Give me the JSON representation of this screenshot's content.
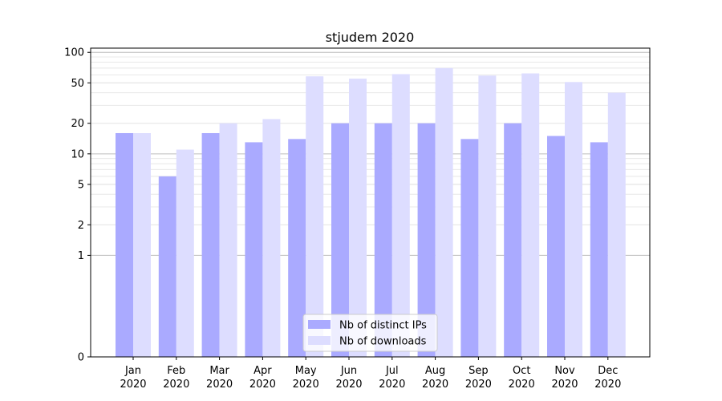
{
  "chart_data": {
    "type": "bar",
    "title": "stjudem 2020",
    "xlabel": "",
    "ylabel": "",
    "categories": [
      "Jan\n2020",
      "Feb\n2020",
      "Mar\n2020",
      "Apr\n2020",
      "May\n2020",
      "Jun\n2020",
      "Jul\n2020",
      "Aug\n2020",
      "Sep\n2020",
      "Oct\n2020",
      "Nov\n2020",
      "Dec\n2020"
    ],
    "series": [
      {
        "name": "Nb of distinct IPs",
        "color": "#aaaaff",
        "values": [
          16,
          6,
          16,
          13,
          14,
          20,
          20,
          20,
          14,
          20,
          15,
          13
        ]
      },
      {
        "name": "Nb of downloads",
        "color": "#ddddff",
        "values": [
          16,
          11,
          20,
          22,
          58,
          55,
          61,
          70,
          59,
          62,
          51,
          40
        ]
      }
    ],
    "yscale": "symlog",
    "ylim": [
      0,
      110
    ],
    "yticks": [
      0,
      1,
      2,
      5,
      10,
      20,
      50,
      100
    ],
    "ytick_labels": [
      "0",
      "1",
      "2",
      "5",
      "10",
      "20",
      "50",
      "100"
    ],
    "grid": true,
    "legend_position": "lower center"
  }
}
